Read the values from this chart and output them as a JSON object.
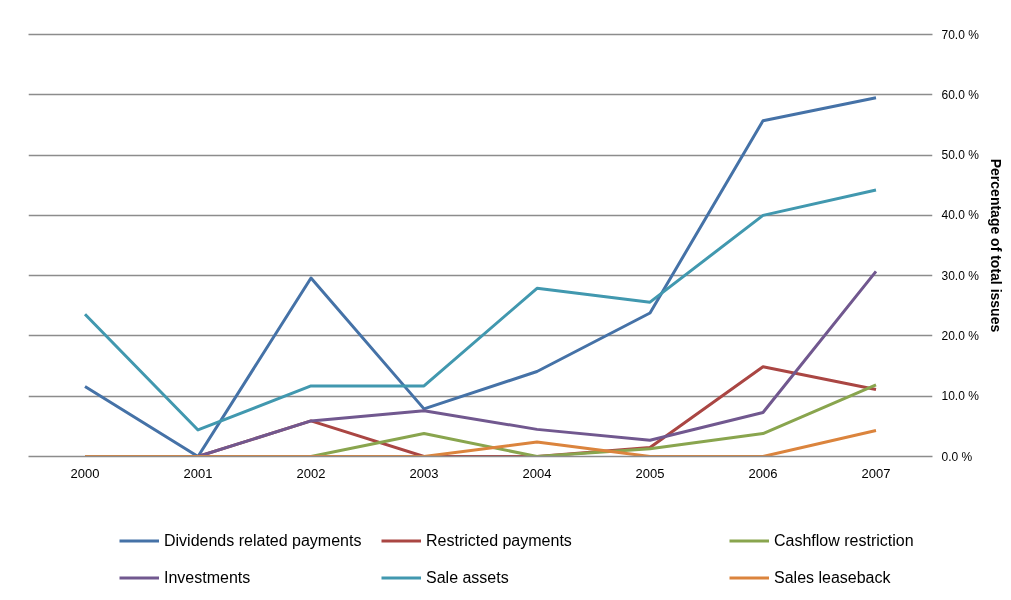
{
  "chart_data": {
    "type": "line",
    "categories": [
      "2000",
      "2001",
      "2002",
      "2003",
      "2004",
      "2005",
      "2006",
      "2007"
    ],
    "ylabel": "Percentage of total issues",
    "ylim": [
      0,
      70
    ],
    "yticks": [
      {
        "value": 0,
        "label": "0.0 %"
      },
      {
        "value": 10,
        "label": "10.0 %"
      },
      {
        "value": 20,
        "label": "20.0 %"
      },
      {
        "value": 30,
        "label": "30.0 %"
      },
      {
        "value": 40,
        "label": "40.0 %"
      },
      {
        "value": 50,
        "label": "50.0 %"
      },
      {
        "value": 60,
        "label": "60.0 %"
      },
      {
        "value": 70,
        "label": "70.0 %"
      }
    ],
    "grid": "y",
    "legend": "bottom",
    "line_style": "solid",
    "series": [
      {
        "name": "Dividends related payments",
        "color": "#4572a7",
        "values": [
          11.6,
          0,
          29.6,
          7.9,
          14.1,
          23.8,
          55.7,
          59.5
        ]
      },
      {
        "name": "Restricted payments",
        "color": "#aa4643",
        "values": [
          0,
          0,
          5.9,
          0,
          0,
          1.5,
          14.9,
          11.1
        ]
      },
      {
        "name": "Cashflow restriction",
        "color": "#89a54e",
        "values": [
          0,
          0,
          0,
          3.8,
          0,
          1.3,
          3.8,
          11.9
        ]
      },
      {
        "name": "Investments",
        "color": "#71588f",
        "values": [
          0,
          0,
          5.9,
          7.6,
          4.5,
          2.7,
          7.3,
          30.7
        ]
      },
      {
        "name": "Sale assets",
        "color": "#4198af",
        "values": [
          23.6,
          4.4,
          11.7,
          11.7,
          27.9,
          25.6,
          40.0,
          44.2
        ]
      },
      {
        "name": "Sales leaseback",
        "color": "#db843d",
        "values": [
          0,
          0,
          0,
          0,
          2.4,
          0,
          0,
          4.3
        ]
      }
    ]
  }
}
